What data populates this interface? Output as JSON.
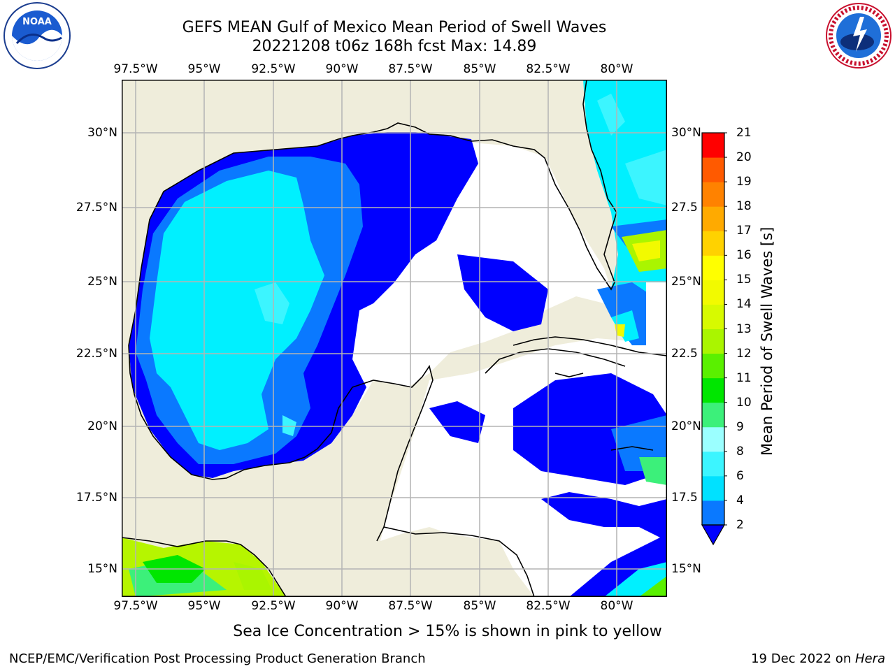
{
  "title": {
    "line1": "GEFS MEAN Gulf of Mexico Mean Period of Swell Waves",
    "line2": "20221208 t06z 168h fcst   Max: 14.89"
  },
  "map": {
    "lon_ticks": [
      "97.5°W",
      "95°W",
      "92.5°W",
      "90°W",
      "87.5°W",
      "85°W",
      "82.5°W",
      "80°W"
    ],
    "lat_ticks_left": [
      "30°N",
      "27.5°N",
      "25°N",
      "22.5°N",
      "20°N",
      "17.5°N",
      "15°N"
    ],
    "lat_ticks_right": [
      "30°N",
      "27.5",
      "25°N",
      "22.5",
      "20°N",
      "17.5",
      "15°N"
    ],
    "colors": {
      "land": "#efeddb",
      "ocean_low": "#ffffff",
      "grid": "#b4b4b4"
    }
  },
  "colorbar": {
    "label": "Mean Period of Swell Waves [s]",
    "ticks": [
      "2",
      "4",
      "6",
      "8",
      "9",
      "10",
      "11",
      "12",
      "13",
      "14",
      "15",
      "16",
      "17",
      "18",
      "19",
      "20",
      "21"
    ],
    "colors": [
      "#0a79ff",
      "#00e1ff",
      "#3cf5ff",
      "#9bffff",
      "#3cf07a",
      "#00e600",
      "#5af000",
      "#aaf500",
      "#d7fa00",
      "#f2fa00",
      "#ffff00",
      "#ffd200",
      "#ffaa00",
      "#ff8200",
      "#ff5a00",
      "#ff2800",
      "#ff0000"
    ],
    "extend_color": "#0000ff"
  },
  "note": "Sea Ice Concentration > 15% is shown in pink to yellow",
  "footer": {
    "left": "NCEP/EMC/Verification Post Processing Product Generation Branch",
    "right_date": "19 Dec 2022 on ",
    "right_host": "Hera"
  }
}
